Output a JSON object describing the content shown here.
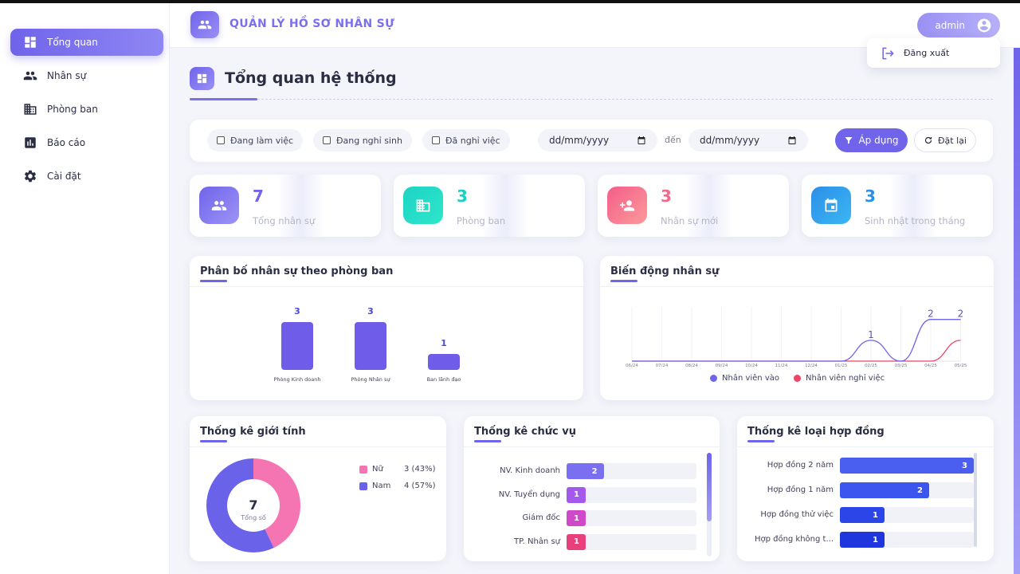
{
  "app": {
    "title": "QUẢN LÝ HỒ SƠ NHÂN SỰ",
    "user": "admin",
    "logout_label": "Đăng xuất"
  },
  "sidebar": {
    "items": [
      {
        "label": "Tổng quan",
        "icon": "dashboard-icon",
        "active": true
      },
      {
        "label": "Nhân sự",
        "icon": "people-icon",
        "active": false
      },
      {
        "label": "Phòng ban",
        "icon": "building-icon",
        "active": false
      },
      {
        "label": "Báo cáo",
        "icon": "chart-icon",
        "active": false
      },
      {
        "label": "Cài đặt",
        "icon": "gear-icon",
        "active": false
      }
    ]
  },
  "page": {
    "title": "Tổng quan hệ thống"
  },
  "filters": {
    "statuses": [
      "Đang làm việc",
      "Đang nghỉ sinh",
      "Đã nghỉ việc"
    ],
    "date_from_placeholder": "dd/mm/yyyy",
    "to_label": "đến",
    "date_to_placeholder": "dd/mm/yyyy",
    "apply_label": "Áp dụng",
    "reset_label": "Đặt lại"
  },
  "stats": [
    {
      "value": "7",
      "label": "Tổng nhân sự",
      "color": "#6f64ea"
    },
    {
      "value": "3",
      "label": "Phòng ban",
      "color": "#1ccfc4"
    },
    {
      "value": "3",
      "label": "Nhân sự mới",
      "color": "#f06a8a"
    },
    {
      "value": "3",
      "label": "Sinh nhật trong tháng",
      "color": "#2b8fe8"
    }
  ],
  "dept_chart": {
    "title": "Phân bố nhân sự theo phòng ban",
    "chart_data": {
      "type": "bar",
      "categories": [
        "Phòng Kinh doanh",
        "Phòng Nhân sự",
        "Ban lãnh đạo"
      ],
      "values": [
        3,
        3,
        1
      ],
      "ylim": [
        0,
        3
      ]
    }
  },
  "trend_chart": {
    "title": "Biến động nhân sự",
    "chart_data": {
      "type": "line",
      "x": [
        "06/24",
        "07/24",
        "08/24",
        "09/24",
        "10/24",
        "11/24",
        "12/24",
        "01/25",
        "02/25",
        "03/25",
        "04/25",
        "05/25"
      ],
      "series": [
        {
          "name": "Nhân viên vào",
          "color": "#6f64ea",
          "values": [
            0,
            0,
            0,
            0,
            0,
            0,
            0,
            0,
            1,
            0,
            2,
            2
          ]
        },
        {
          "name": "Nhân viên nghỉ việc",
          "color": "#ee4466",
          "values": [
            0,
            0,
            0,
            0,
            0,
            0,
            0,
            0,
            0,
            0,
            0,
            1
          ]
        }
      ],
      "point_labels": {
        "8": "1",
        "10": "2",
        "11": "2"
      },
      "ylim": [
        0,
        2.6
      ]
    }
  },
  "gender": {
    "title": "Thống kê giới tính",
    "total": "7",
    "total_label": "Tổng số",
    "chart_data": {
      "type": "pie",
      "slices": [
        {
          "label": "Nữ",
          "value": 3,
          "text": "3 (43%)",
          "color": "#f475b1"
        },
        {
          "label": "Nam",
          "value": 4,
          "text": "4 (57%)",
          "color": "#6a63ea"
        }
      ]
    }
  },
  "positions": {
    "title": "Thống kê chức vụ",
    "chart_data": {
      "type": "bar",
      "orientation": "horizontal",
      "max": 7,
      "items": [
        {
          "label": "NV. Kinh doanh",
          "value": 2,
          "color": "#7a6ff0"
        },
        {
          "label": "NV. Tuyển dụng",
          "value": 1,
          "color": "#a259ec"
        },
        {
          "label": "Giám đốc",
          "value": 1,
          "color": "#cf49c8"
        },
        {
          "label": "TP. Nhân sự",
          "value": 1,
          "color": "#e8407a"
        }
      ]
    }
  },
  "contracts": {
    "title": "Thống kê loại hợp đồng",
    "chart_data": {
      "type": "bar",
      "orientation": "horizontal",
      "max": 3,
      "items": [
        {
          "label": "Hợp đồng 2 năm",
          "value": 3,
          "color": "#4a5ef0"
        },
        {
          "label": "Hợp đồng 1 năm",
          "value": 2,
          "color": "#3c55ee"
        },
        {
          "label": "Hợp đồng thử việc",
          "value": 1,
          "color": "#2b45e8"
        },
        {
          "label": "Hợp đồng không t...",
          "value": 1,
          "color": "#1f36de"
        }
      ]
    }
  }
}
